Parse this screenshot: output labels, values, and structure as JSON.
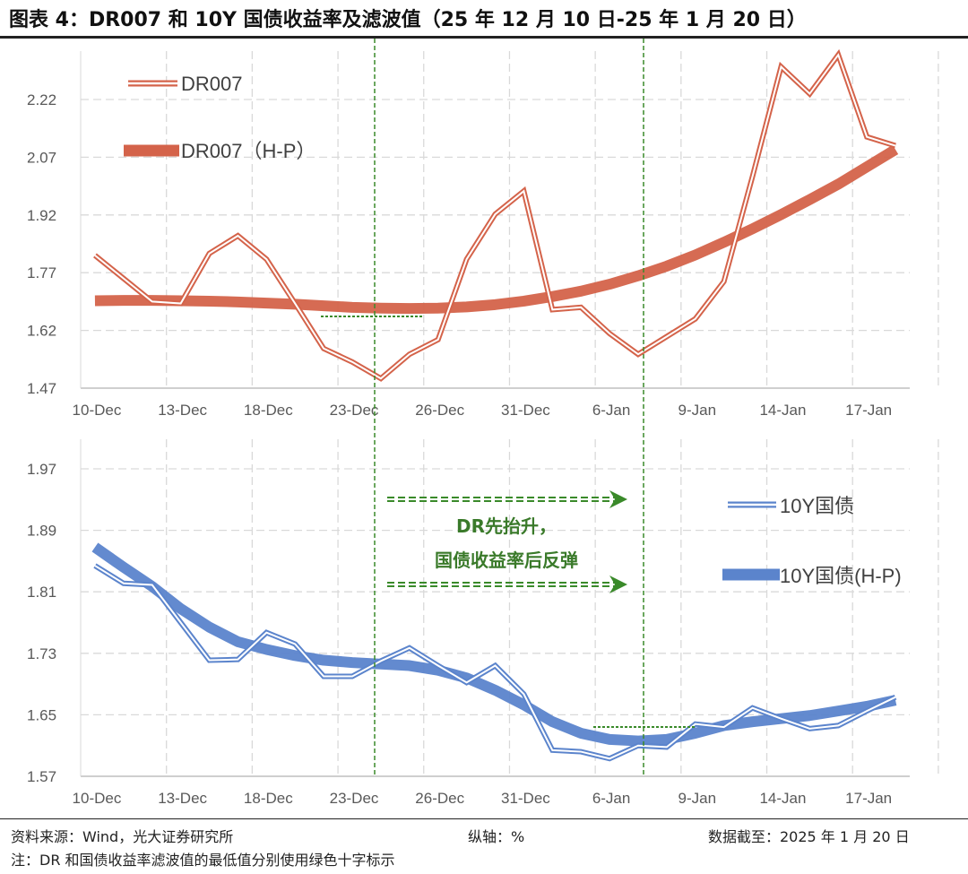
{
  "title": "图表 4：DR007 和 10Y 国债收益率及滤波值（25 年 12 月 10 日-25 年 1 月 20 日）",
  "footer": {
    "source": "资料来源：Wind，光大证券研究所",
    "axis_unit": "纵轴：%",
    "date": "数据截至：2025 年 1 月 20 日",
    "note": "注：DR 和国债收益率滤波值的最低值分别使用绿色十字标示"
  },
  "colors": {
    "dr007": "#d4634a",
    "bond": "#5b84cc",
    "marker": "#3a8a2a"
  },
  "annotation": {
    "line1": "DR先抬升，",
    "line2": "国债收益率后反弹"
  },
  "chart_data": [
    {
      "type": "line",
      "categories": [
        "10-Dec",
        "11-Dec",
        "12-Dec",
        "13-Dec",
        "16-Dec",
        "17-Dec",
        "18-Dec",
        "19-Dec",
        "20-Dec",
        "23-Dec",
        "24-Dec",
        "25-Dec",
        "26-Dec",
        "27-Dec",
        "30-Dec",
        "31-Dec",
        "2-Jan",
        "3-Jan",
        "6-Jan",
        "7-Jan",
        "8-Jan",
        "9-Jan",
        "10-Jan",
        "13-Jan",
        "14-Jan",
        "15-Jan",
        "16-Jan",
        "17-Jan",
        "20-Jan"
      ],
      "x_tick_labels": [
        "10-Dec",
        "13-Dec",
        "18-Dec",
        "23-Dec",
        "26-Dec",
        "31-Dec",
        "6-Jan",
        "9-Jan",
        "14-Jan",
        "17-Jan"
      ],
      "y_ticks": [
        "1.47",
        "1.62",
        "1.77",
        "1.92",
        "2.07",
        "2.22"
      ],
      "grid": true,
      "legend": "top-left",
      "series": [
        {
          "name": "DR007",
          "values": [
            1.815,
            1.755,
            1.695,
            1.69,
            1.82,
            1.866,
            1.805,
            1.69,
            1.573,
            1.538,
            1.495,
            1.558,
            1.596,
            1.805,
            1.922,
            1.982,
            1.674,
            1.68,
            1.612,
            1.558,
            1.604,
            1.65,
            1.747,
            2.02,
            2.305,
            2.235,
            2.336,
            2.123,
            2.1
          ]
        },
        {
          "name": "DR007（H-P）",
          "values": [
            1.697,
            1.698,
            1.698,
            1.697,
            1.696,
            1.694,
            1.691,
            1.688,
            1.684,
            1.68,
            1.678,
            1.677,
            1.678,
            1.681,
            1.687,
            1.696,
            1.708,
            1.722,
            1.74,
            1.762,
            1.787,
            1.816,
            1.849,
            1.884,
            1.921,
            1.96,
            2.0,
            2.045,
            2.09
          ]
        }
      ]
    },
    {
      "type": "line",
      "categories": [
        "10-Dec",
        "11-Dec",
        "12-Dec",
        "13-Dec",
        "16-Dec",
        "17-Dec",
        "18-Dec",
        "19-Dec",
        "20-Dec",
        "23-Dec",
        "24-Dec",
        "25-Dec",
        "26-Dec",
        "27-Dec",
        "30-Dec",
        "31-Dec",
        "2-Jan",
        "3-Jan",
        "6-Jan",
        "7-Jan",
        "8-Jan",
        "9-Jan",
        "10-Jan",
        "13-Jan",
        "14-Jan",
        "15-Jan",
        "16-Jan",
        "17-Jan",
        "20-Jan"
      ],
      "x_tick_labels": [
        "10-Dec",
        "13-Dec",
        "18-Dec",
        "23-Dec",
        "26-Dec",
        "31-Dec",
        "6-Jan",
        "9-Jan",
        "14-Jan",
        "17-Jan"
      ],
      "y_ticks": [
        "1.57",
        "1.65",
        "1.73",
        "1.81",
        "1.89",
        "1.97"
      ],
      "grid": true,
      "legend": "right",
      "series": [
        {
          "name": "10Y国债",
          "values": [
            1.844,
            1.821,
            1.819,
            1.77,
            1.721,
            1.722,
            1.757,
            1.742,
            1.7,
            1.7,
            1.72,
            1.737,
            1.714,
            1.692,
            1.714,
            1.677,
            1.604,
            1.602,
            1.593,
            1.61,
            1.608,
            1.638,
            1.634,
            1.659,
            1.645,
            1.632,
            1.636,
            1.655,
            1.673
          ]
        },
        {
          "name": "10Y国债(H-P)",
          "values": [
            1.868,
            1.842,
            1.817,
            1.788,
            1.764,
            1.745,
            1.735,
            1.727,
            1.721,
            1.718,
            1.716,
            1.714,
            1.708,
            1.698,
            1.682,
            1.663,
            1.641,
            1.626,
            1.618,
            1.616,
            1.618,
            1.626,
            1.636,
            1.641,
            1.645,
            1.649,
            1.655,
            1.661,
            1.669
          ]
        }
      ]
    }
  ]
}
